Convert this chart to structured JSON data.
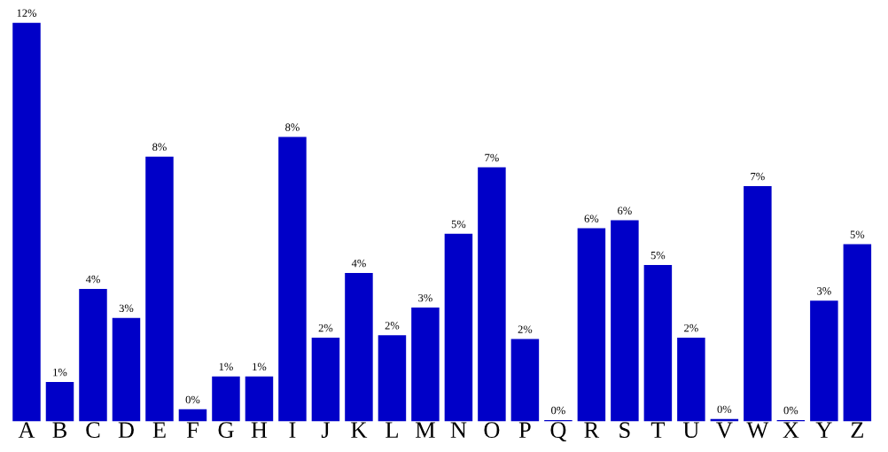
{
  "chart_data": {
    "type": "bar",
    "categories": [
      "A",
      "B",
      "C",
      "D",
      "E",
      "F",
      "G",
      "H",
      "I",
      "J",
      "K",
      "L",
      "M",
      "N",
      "O",
      "P",
      "Q",
      "R",
      "S",
      "T",
      "U",
      "V",
      "W",
      "X",
      "Y",
      "Z"
    ],
    "values": [
      11.52,
      1.14,
      3.83,
      2.99,
      7.65,
      0.35,
      1.3,
      1.3,
      8.22,
      2.42,
      4.29,
      2.49,
      3.29,
      5.42,
      7.34,
      2.38,
      0.04,
      5.58,
      5.81,
      4.52,
      2.42,
      0.07,
      6.8,
      0.04,
      3.49,
      5.12
    ],
    "value_labels": [
      "12%",
      "1%",
      "4%",
      "3%",
      "8%",
      "0%",
      "1%",
      "1%",
      "8%",
      "2%",
      "4%",
      "2%",
      "3%",
      "5%",
      "7%",
      "2%",
      "0%",
      "6%",
      "6%",
      "5%",
      "2%",
      "0%",
      "7%",
      "0%",
      "3%",
      "5%"
    ],
    "color": "#0000c8",
    "tick_labels": "x"
  }
}
